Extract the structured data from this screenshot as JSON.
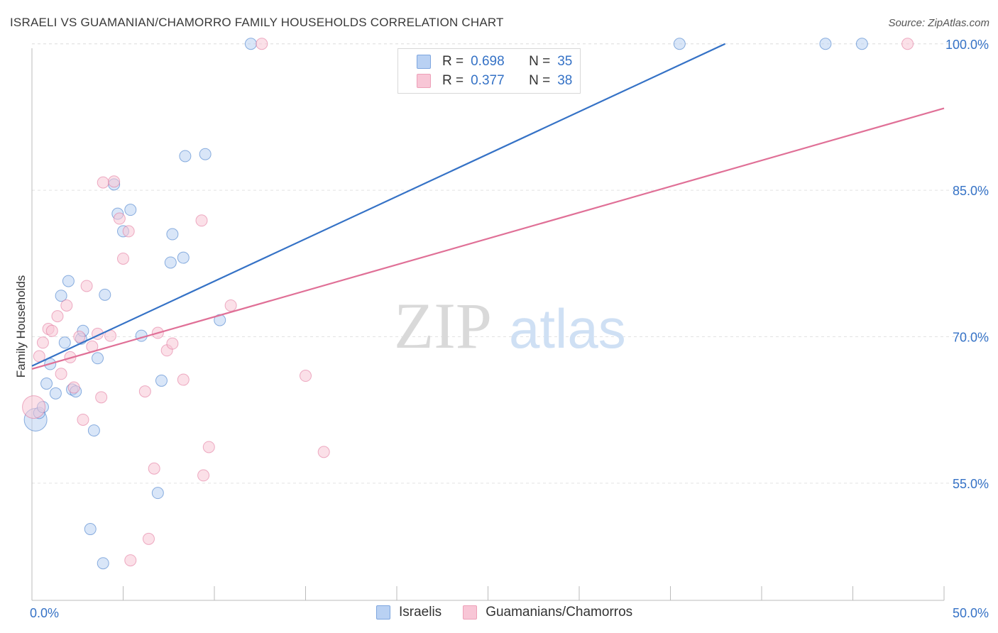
{
  "header": {
    "title": "ISRAELI VS GUAMANIAN/CHAMORRO FAMILY HOUSEHOLDS CORRELATION CHART",
    "source": "Source: ZipAtlas.com"
  },
  "watermark": {
    "zip": "ZIP",
    "atlas": "atlas"
  },
  "legend": {
    "r_label": "R =",
    "n_label": "N =",
    "items": [
      {
        "series": "Israelis",
        "r": "0.698",
        "n": "35",
        "color": "#3572c6"
      },
      {
        "series": "Guamanians/Chamorros",
        "r": "0.377",
        "n": "38",
        "color": "#e07097"
      }
    ]
  },
  "chart_data": {
    "type": "scatter",
    "title": "ISRAELI VS GUAMANIAN/CHAMORRO FAMILY HOUSEHOLDS CORRELATION CHART",
    "xlabel": "",
    "ylabel": "Family Households",
    "xlim": [
      0,
      50
    ],
    "ylim": [
      43,
      101
    ],
    "x_tick_labels": [
      "0.0%",
      "50.0%"
    ],
    "y_ticks": [
      55,
      70,
      85,
      100
    ],
    "y_tick_labels": [
      "55.0%",
      "70.0%",
      "85.0%",
      "100.0%"
    ],
    "grid": true,
    "legend_position": "top-center",
    "series": [
      {
        "name": "Israelis",
        "color": "#3572c6",
        "fill": "#b9d1f3",
        "trend": {
          "x": [
            0,
            38
          ],
          "y": [
            67,
            100.0
          ]
        },
        "points": [
          {
            "x": 0.2,
            "y": 61.5,
            "big": true
          },
          {
            "x": 0.4,
            "y": 62.2
          },
          {
            "x": 0.6,
            "y": 62.8
          },
          {
            "x": 0.8,
            "y": 65.2
          },
          {
            "x": 1.0,
            "y": 67.2
          },
          {
            "x": 1.3,
            "y": 64.2
          },
          {
            "x": 1.6,
            "y": 74.2
          },
          {
            "x": 1.8,
            "y": 69.4
          },
          {
            "x": 2.0,
            "y": 75.7
          },
          {
            "x": 2.2,
            "y": 64.6
          },
          {
            "x": 2.4,
            "y": 64.4
          },
          {
            "x": 2.7,
            "y": 69.8
          },
          {
            "x": 2.8,
            "y": 70.6
          },
          {
            "x": 3.2,
            "y": 50.3
          },
          {
            "x": 3.4,
            "y": 60.4
          },
          {
            "x": 3.6,
            "y": 67.8
          },
          {
            "x": 3.9,
            "y": 46.8
          },
          {
            "x": 4.0,
            "y": 74.3
          },
          {
            "x": 4.5,
            "y": 85.6
          },
          {
            "x": 4.7,
            "y": 82.6
          },
          {
            "x": 5.0,
            "y": 80.8
          },
          {
            "x": 5.4,
            "y": 83.0
          },
          {
            "x": 6.0,
            "y": 70.1
          },
          {
            "x": 6.9,
            "y": 54.0
          },
          {
            "x": 7.1,
            "y": 65.5
          },
          {
            "x": 7.6,
            "y": 77.6
          },
          {
            "x": 7.7,
            "y": 80.5
          },
          {
            "x": 8.3,
            "y": 78.1
          },
          {
            "x": 8.4,
            "y": 88.5
          },
          {
            "x": 9.5,
            "y": 88.7
          },
          {
            "x": 10.3,
            "y": 71.7
          },
          {
            "x": 12.0,
            "y": 100.0
          },
          {
            "x": 35.5,
            "y": 100.0
          },
          {
            "x": 43.5,
            "y": 100.0
          },
          {
            "x": 45.5,
            "y": 100.0
          }
        ]
      },
      {
        "name": "Guamanians/Chamorros",
        "color": "#e07097",
        "fill": "#f8c6d6",
        "trend": {
          "x": [
            0,
            50
          ],
          "y": [
            66.7,
            93.4
          ]
        },
        "points": [
          {
            "x": 0.1,
            "y": 62.8,
            "big": true
          },
          {
            "x": 0.4,
            "y": 68.0
          },
          {
            "x": 0.6,
            "y": 69.4
          },
          {
            "x": 0.9,
            "y": 70.8
          },
          {
            "x": 1.1,
            "y": 70.6
          },
          {
            "x": 1.4,
            "y": 72.1
          },
          {
            "x": 1.6,
            "y": 66.2
          },
          {
            "x": 1.9,
            "y": 73.2
          },
          {
            "x": 2.1,
            "y": 67.9
          },
          {
            "x": 2.3,
            "y": 64.8
          },
          {
            "x": 2.6,
            "y": 70.0
          },
          {
            "x": 2.8,
            "y": 61.5
          },
          {
            "x": 3.0,
            "y": 75.2
          },
          {
            "x": 3.3,
            "y": 69.0
          },
          {
            "x": 3.6,
            "y": 70.3
          },
          {
            "x": 3.8,
            "y": 63.8
          },
          {
            "x": 3.9,
            "y": 85.8
          },
          {
            "x": 4.3,
            "y": 70.1
          },
          {
            "x": 4.5,
            "y": 85.9
          },
          {
            "x": 4.8,
            "y": 82.1
          },
          {
            "x": 5.0,
            "y": 78.0
          },
          {
            "x": 5.3,
            "y": 80.8
          },
          {
            "x": 5.4,
            "y": 47.1
          },
          {
            "x": 6.2,
            "y": 64.4
          },
          {
            "x": 6.4,
            "y": 49.3
          },
          {
            "x": 6.7,
            "y": 56.5
          },
          {
            "x": 6.9,
            "y": 70.4
          },
          {
            "x": 7.4,
            "y": 68.6
          },
          {
            "x": 7.7,
            "y": 69.3
          },
          {
            "x": 8.3,
            "y": 65.6
          },
          {
            "x": 9.3,
            "y": 81.9
          },
          {
            "x": 9.4,
            "y": 55.8
          },
          {
            "x": 9.7,
            "y": 58.7
          },
          {
            "x": 10.9,
            "y": 73.2
          },
          {
            "x": 12.6,
            "y": 100.0
          },
          {
            "x": 15.0,
            "y": 66.0
          },
          {
            "x": 16.0,
            "y": 58.2
          },
          {
            "x": 48.0,
            "y": 100.0
          }
        ]
      }
    ]
  }
}
